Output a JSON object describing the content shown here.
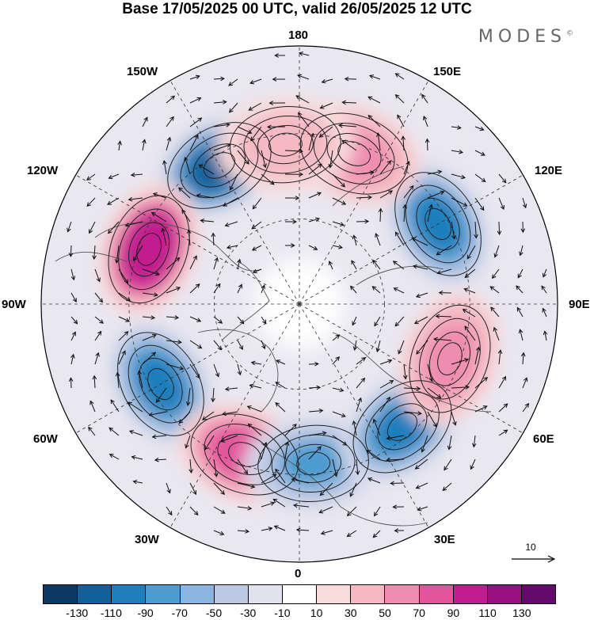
{
  "header": {
    "title": "Base 17/05/2025 00 UTC, valid 26/05/2025 12 UTC",
    "brand": "MODES",
    "brand_mark": "©"
  },
  "map": {
    "projection": "north-polar-stereographic",
    "longitude_labels": {
      "top": "180",
      "top_right": "150E",
      "right_upper": "120E",
      "right": "90E",
      "right_lower": "60E",
      "bottom_right": "30E",
      "bottom": "0",
      "bottom_left": "30W",
      "left_lower": "60W",
      "left": "90W",
      "left_upper": "120W",
      "top_left": "150W"
    },
    "anomaly_centers": [
      {
        "lon": -150,
        "sign": "negative",
        "level": -110
      },
      {
        "lon": -110,
        "sign": "positive",
        "level": 110
      },
      {
        "lon": -60,
        "sign": "negative",
        "level": -90
      },
      {
        "lon": -20,
        "sign": "positive",
        "level": 90
      },
      {
        "lon": 5,
        "sign": "negative",
        "level": -70
      },
      {
        "lon": 40,
        "sign": "negative",
        "level": -90
      },
      {
        "lon": 70,
        "sign": "positive",
        "level": 70
      },
      {
        "lon": 120,
        "sign": "negative",
        "level": -90
      },
      {
        "lon": 160,
        "sign": "positive",
        "level": 70
      },
      {
        "lon": -175,
        "sign": "positive",
        "level": 50
      }
    ],
    "reference_vector": "10"
  },
  "colorbar": {
    "colors": [
      "#0d3a63",
      "#13609a",
      "#1f7fbd",
      "#4d9bd0",
      "#8bb5de",
      "#bdc9e3",
      "#e2e2ef",
      "#ffffff",
      "#f8dcdc",
      "#f4b9c2",
      "#ef8db0",
      "#e2559c",
      "#c21d8f",
      "#990f80",
      "#650a6d"
    ],
    "tick_labels": [
      "-130",
      "-110",
      "-90",
      "-70",
      "-50",
      "-30",
      "-10",
      "10",
      "30",
      "50",
      "70",
      "90",
      "110",
      "130"
    ]
  }
}
